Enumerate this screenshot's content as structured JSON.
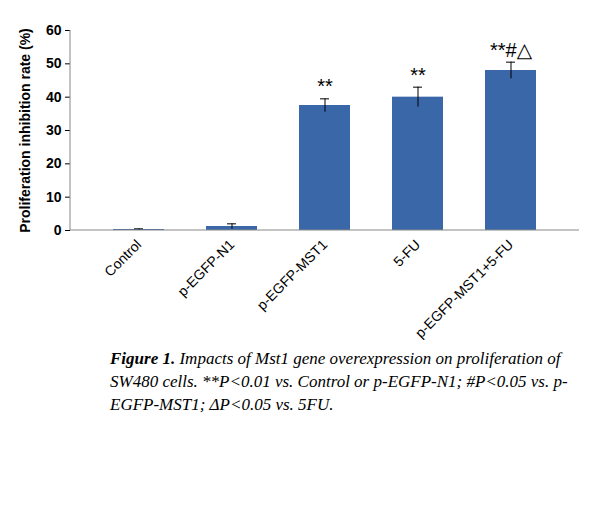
{
  "chart_data": {
    "type": "bar",
    "categories": [
      "Control",
      "p-EGFP-N1",
      "p-EGFP-MST1",
      "5-FU",
      "p-EGFP-MST1+5-FU"
    ],
    "values": [
      0.3,
      1.2,
      37.5,
      40,
      48
    ],
    "errors": [
      0.2,
      0.8,
      2,
      3,
      2.5
    ],
    "annotations": [
      null,
      null,
      "**",
      "**",
      "**#△"
    ],
    "color": "#3a67a8",
    "ylabel": "Proliferation inhibition rate (%)",
    "ylim": [
      0,
      60
    ],
    "yticks": [
      0,
      10,
      20,
      30,
      40,
      50,
      60
    ],
    "grid": false,
    "caption_label": "Figure 1.",
    "caption": "Impacts of Mst1 gene overexpression on proliferation of SW480 cells. **P<0.01 vs. Control or p-EGFP-N1; #P<0.05 vs. p-EGFP-MST1; ΔP<0.05 vs. 5FU."
  }
}
